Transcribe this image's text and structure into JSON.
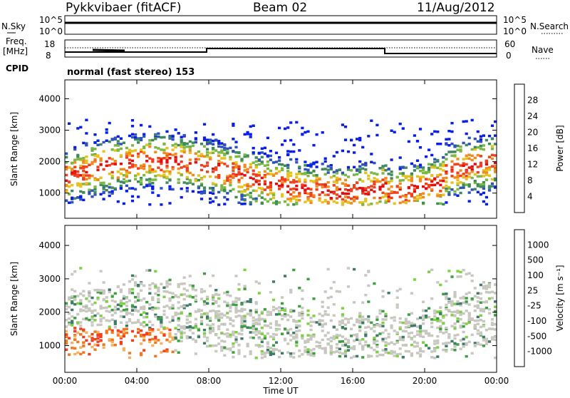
{
  "header": {
    "station": "Pykkvibaer (fitACF)",
    "beam": "Beam 02",
    "date": "11/Aug/2012"
  },
  "strips": {
    "nsky_label": "N.Sky",
    "nsky_ticks": [
      "10^5",
      "10^0"
    ],
    "nsearch_label": "N.Search",
    "nsearch_ticks": [
      "10^5",
      "10^0"
    ],
    "freq_label": "Freq.",
    "freq_unit": "[MHz]",
    "freq_ticks": [
      "18",
      "8"
    ],
    "nave_label": "Nave",
    "nave_ticks": [
      "60",
      "0"
    ],
    "cpid_label": "CPID",
    "cpid_text": "normal (fast stereo) 153"
  },
  "colors": {
    "power": [
      "#0a1fe6",
      "#2f53b8",
      "#3f8a5a",
      "#7cb844",
      "#e6c21e",
      "#f08c1e",
      "#f0401e",
      "#e01010"
    ],
    "velocity": [
      "#e01010",
      "#f04020",
      "#f0781e",
      "#f6b060",
      "#c8c8c0",
      "#b8b8b0",
      "#7ed044",
      "#3ca040",
      "#3f7a6a",
      "#2f53b8"
    ]
  },
  "chart_data": [
    {
      "type": "heatmap",
      "name": "power",
      "ylabel": "Slant Range [km]",
      "yticks": [
        "1000",
        "2000",
        "3000",
        "4000"
      ],
      "ylim": [
        200,
        4600
      ],
      "xlim": [
        0,
        24
      ],
      "colorbar_label": "Power [dB]",
      "colorbar_ticks": [
        "4",
        "8",
        "12",
        "16",
        "20",
        "24",
        "28"
      ],
      "colorbar_range": [
        0,
        32
      ]
    },
    {
      "type": "heatmap",
      "name": "velocity",
      "xlabel": "Time UT",
      "xticks": [
        "00:00",
        "04:00",
        "08:00",
        "12:00",
        "16:00",
        "20:00",
        "00:00"
      ],
      "ylabel": "Slant Range [km]",
      "yticks": [
        "1000",
        "2000",
        "3000",
        "4000"
      ],
      "ylim": [
        200,
        4600
      ],
      "xlim": [
        0,
        24
      ],
      "colorbar_label": "Velocity [m s⁻¹]",
      "colorbar_ticks": [
        "-1000",
        "-500",
        "-100",
        "-25",
        "25",
        "100",
        "500",
        "1000"
      ]
    }
  ]
}
